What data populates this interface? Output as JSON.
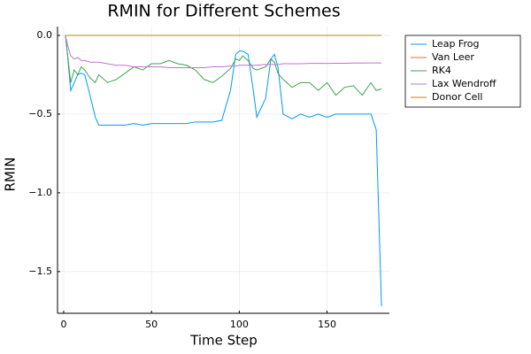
{
  "chart_data": {
    "type": "line",
    "title": "RMIN for Different Schemes",
    "xlabel": "Time Step",
    "ylabel": "RMIN",
    "x": [
      1,
      2,
      4,
      6,
      8,
      10,
      12,
      15,
      18,
      20,
      25,
      30,
      35,
      40,
      45,
      50,
      55,
      60,
      65,
      70,
      75,
      80,
      85,
      90,
      95,
      98,
      100,
      102,
      105,
      108,
      110,
      115,
      118,
      120,
      122,
      125,
      130,
      135,
      140,
      145,
      150,
      155,
      160,
      165,
      170,
      175,
      178,
      181
    ],
    "series": [
      {
        "name": "Leap Frog",
        "color": "#009af9",
        "values": [
          0,
          -0.1,
          -0.35,
          -0.3,
          -0.25,
          -0.24,
          -0.25,
          -0.38,
          -0.52,
          -0.57,
          -0.57,
          -0.57,
          -0.57,
          -0.56,
          -0.57,
          -0.56,
          -0.56,
          -0.56,
          -0.56,
          -0.56,
          -0.55,
          -0.55,
          -0.55,
          -0.54,
          -0.35,
          -0.12,
          -0.1,
          -0.1,
          -0.12,
          -0.35,
          -0.52,
          -0.4,
          -0.15,
          -0.12,
          -0.2,
          -0.5,
          -0.53,
          -0.5,
          -0.52,
          -0.5,
          -0.52,
          -0.5,
          -0.5,
          -0.5,
          -0.5,
          -0.5,
          -0.6,
          -1.72
        ]
      },
      {
        "name": "Van Leer",
        "color": "#e26f46",
        "values": [
          0,
          0,
          0,
          0,
          0,
          0,
          0,
          0,
          0,
          0,
          0,
          0,
          0,
          0,
          0,
          0,
          0,
          0,
          0,
          0,
          0,
          0,
          0,
          0,
          0,
          0,
          0,
          0,
          0,
          0,
          0,
          0,
          0,
          0,
          0,
          0,
          0,
          0,
          0,
          0,
          0,
          0,
          0,
          0,
          0,
          0,
          0,
          0
        ]
      },
      {
        "name": "RK4",
        "color": "#3da44d",
        "values": [
          0,
          -0.1,
          -0.3,
          -0.22,
          -0.25,
          -0.2,
          -0.22,
          -0.27,
          -0.3,
          -0.25,
          -0.3,
          -0.28,
          -0.24,
          -0.2,
          -0.22,
          -0.18,
          -0.18,
          -0.16,
          -0.18,
          -0.19,
          -0.22,
          -0.28,
          -0.3,
          -0.26,
          -0.21,
          -0.15,
          -0.16,
          -0.13,
          -0.16,
          -0.21,
          -0.22,
          -0.2,
          -0.15,
          -0.17,
          -0.24,
          -0.28,
          -0.33,
          -0.3,
          -0.3,
          -0.35,
          -0.3,
          -0.38,
          -0.33,
          -0.32,
          -0.38,
          -0.3,
          -0.35,
          -0.34
        ]
      },
      {
        "name": "Lax Wendroff",
        "color": "#c271d2",
        "values": [
          0,
          -0.05,
          -0.13,
          -0.15,
          -0.14,
          -0.16,
          -0.16,
          -0.17,
          -0.17,
          -0.17,
          -0.18,
          -0.19,
          -0.19,
          -0.2,
          -0.2,
          -0.2,
          -0.2,
          -0.205,
          -0.205,
          -0.205,
          -0.205,
          -0.205,
          -0.2,
          -0.2,
          -0.195,
          -0.195,
          -0.19,
          -0.19,
          -0.19,
          -0.19,
          -0.19,
          -0.185,
          -0.185,
          -0.185,
          -0.185,
          -0.18,
          -0.18,
          -0.18,
          -0.178,
          -0.178,
          -0.178,
          -0.177,
          -0.177,
          -0.176,
          -0.176,
          -0.175,
          -0.175,
          -0.175
        ]
      },
      {
        "name": "Donor Cell",
        "color": "#ac8e18",
        "values": [
          0,
          0,
          0,
          0,
          0,
          0,
          0,
          0,
          0,
          0,
          0,
          0,
          0,
          0,
          0,
          0,
          0,
          0,
          0,
          0,
          0,
          0,
          0,
          0,
          0,
          0,
          0,
          0,
          0,
          0,
          0,
          0,
          0,
          0,
          0,
          0,
          0,
          0,
          0,
          0,
          0,
          0,
          0,
          0,
          0,
          0,
          0,
          0
        ]
      }
    ],
    "xlim": [
      -3.5,
      185.5
    ],
    "xticks": [
      0,
      50,
      100,
      150
    ],
    "ylim": [
      -1.765,
      0.056
    ],
    "yticks": [
      {
        "value": 0,
        "label": "0.0"
      },
      {
        "value": -0.5,
        "label": "−0.5"
      },
      {
        "value": -1,
        "label": "−1.0"
      },
      {
        "value": -1.5,
        "label": "−1.5"
      }
    ],
    "grid": true,
    "legend": "outertopright"
  }
}
